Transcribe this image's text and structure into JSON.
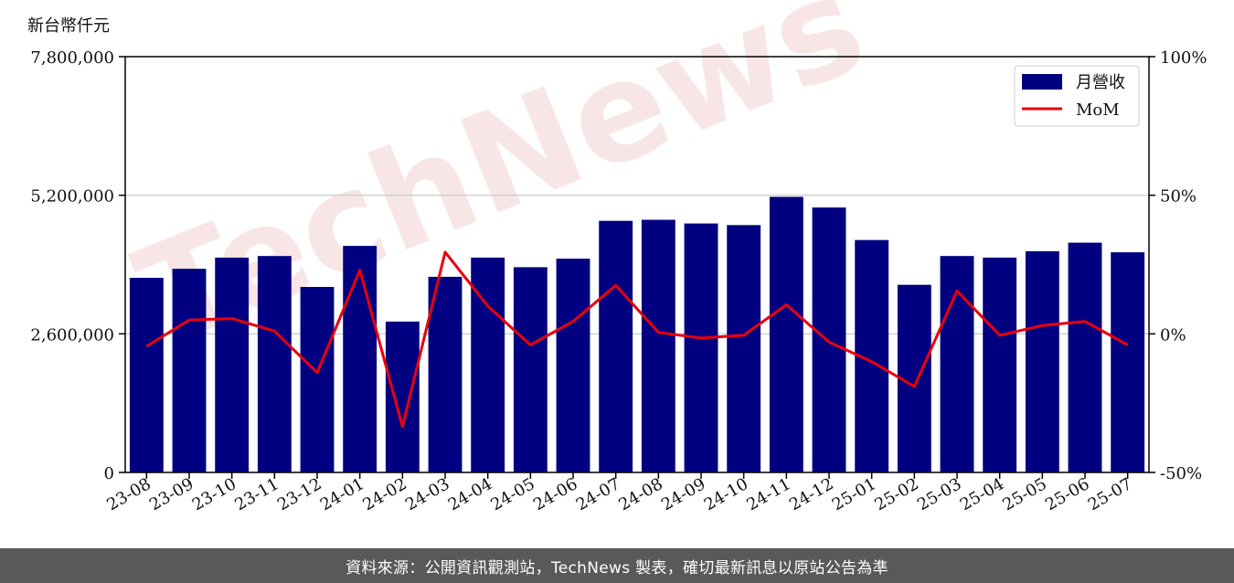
{
  "unit_label": "新台幣仟元",
  "footer_text": "資料來源：公開資訊觀測站，TechNews 製表，確切最新訊息以原站公告為準",
  "watermark_text": "TechNews",
  "colors": {
    "bar": "#000080",
    "line": "#e8000b",
    "grid": "#d0d0d0",
    "footer_bg": "#595959",
    "watermark": "#f3d2d2"
  },
  "chart_data": {
    "type": "bar",
    "categories": [
      "23-08",
      "23-09",
      "23-10",
      "23-11",
      "23-12",
      "24-01",
      "24-02",
      "24-03",
      "24-04",
      "24-05",
      "24-06",
      "24-07",
      "24-08",
      "24-09",
      "24-10",
      "24-11",
      "24-12",
      "25-01",
      "25-02",
      "25-03",
      "25-04",
      "25-05",
      "25-06",
      "25-07"
    ],
    "series": [
      {
        "name": "月營收",
        "type": "bar",
        "axis": "left",
        "values": [
          3650000,
          3820000,
          4030000,
          4060000,
          3480000,
          4250000,
          2830000,
          3670000,
          4030000,
          3850000,
          4010000,
          4720000,
          4740000,
          4670000,
          4640000,
          5170000,
          4970000,
          4360000,
          3520000,
          4060000,
          4030000,
          4150000,
          4310000,
          4130000
        ]
      },
      {
        "name": "MoM",
        "type": "line",
        "axis": "right",
        "values": [
          -4.5,
          5.0,
          5.5,
          1.0,
          -14.0,
          23.0,
          -33.5,
          29.5,
          10.0,
          -4.0,
          4.5,
          17.5,
          0.5,
          -1.5,
          -0.5,
          10.5,
          -3.0,
          -10.0,
          -19.0,
          15.5,
          -0.5,
          3.0,
          4.5,
          -4.0
        ]
      }
    ],
    "left_axis": {
      "min": 0,
      "max": 7800000,
      "ticks": [
        0,
        2600000,
        5200000,
        7800000
      ],
      "tick_labels": [
        "0",
        "2,600,000",
        "5,200,000",
        "7,800,000"
      ]
    },
    "right_axis": {
      "min": -50,
      "max": 100,
      "ticks": [
        -50,
        0,
        50,
        100
      ],
      "tick_labels": [
        "-50%",
        "0%",
        "50%",
        "100%"
      ]
    },
    "grid": "horizontal",
    "legend_position": "top-right"
  }
}
